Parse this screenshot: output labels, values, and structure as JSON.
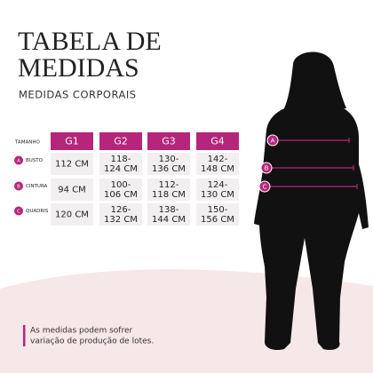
{
  "header": {
    "title_lines": [
      "TABELA DE",
      "MEDIDAS"
    ],
    "subtitle": "MEDIDAS CORPORAIS"
  },
  "table": {
    "header_label": "TAMANHO",
    "columns": [
      "G1",
      "G2",
      "G3",
      "G4"
    ],
    "rows": [
      {
        "letter": "A",
        "label": "BUSTO",
        "values": [
          [
            "112 CM"
          ],
          [
            "118-",
            "124 CM"
          ],
          [
            "130-",
            "136 CM"
          ],
          [
            "142-",
            "148 CM"
          ]
        ]
      },
      {
        "letter": "B",
        "label": "CINTURA",
        "values": [
          [
            "94 CM"
          ],
          [
            "100-",
            "106 CM"
          ],
          [
            "112-",
            "118 CM"
          ],
          [
            "124-",
            "130 CM"
          ]
        ]
      },
      {
        "letter": "C",
        "label": "QUADRIS",
        "values": [
          [
            "120 CM"
          ],
          [
            "126-",
            "132 CM"
          ],
          [
            "138-",
            "144 CM"
          ],
          [
            "150-",
            "156 CM"
          ]
        ]
      }
    ]
  },
  "figure": {
    "markers": [
      "A",
      "B",
      "C"
    ]
  },
  "note": {
    "lines": [
      "As medidas podem sofrer",
      "variação de produção de lotes."
    ]
  }
}
